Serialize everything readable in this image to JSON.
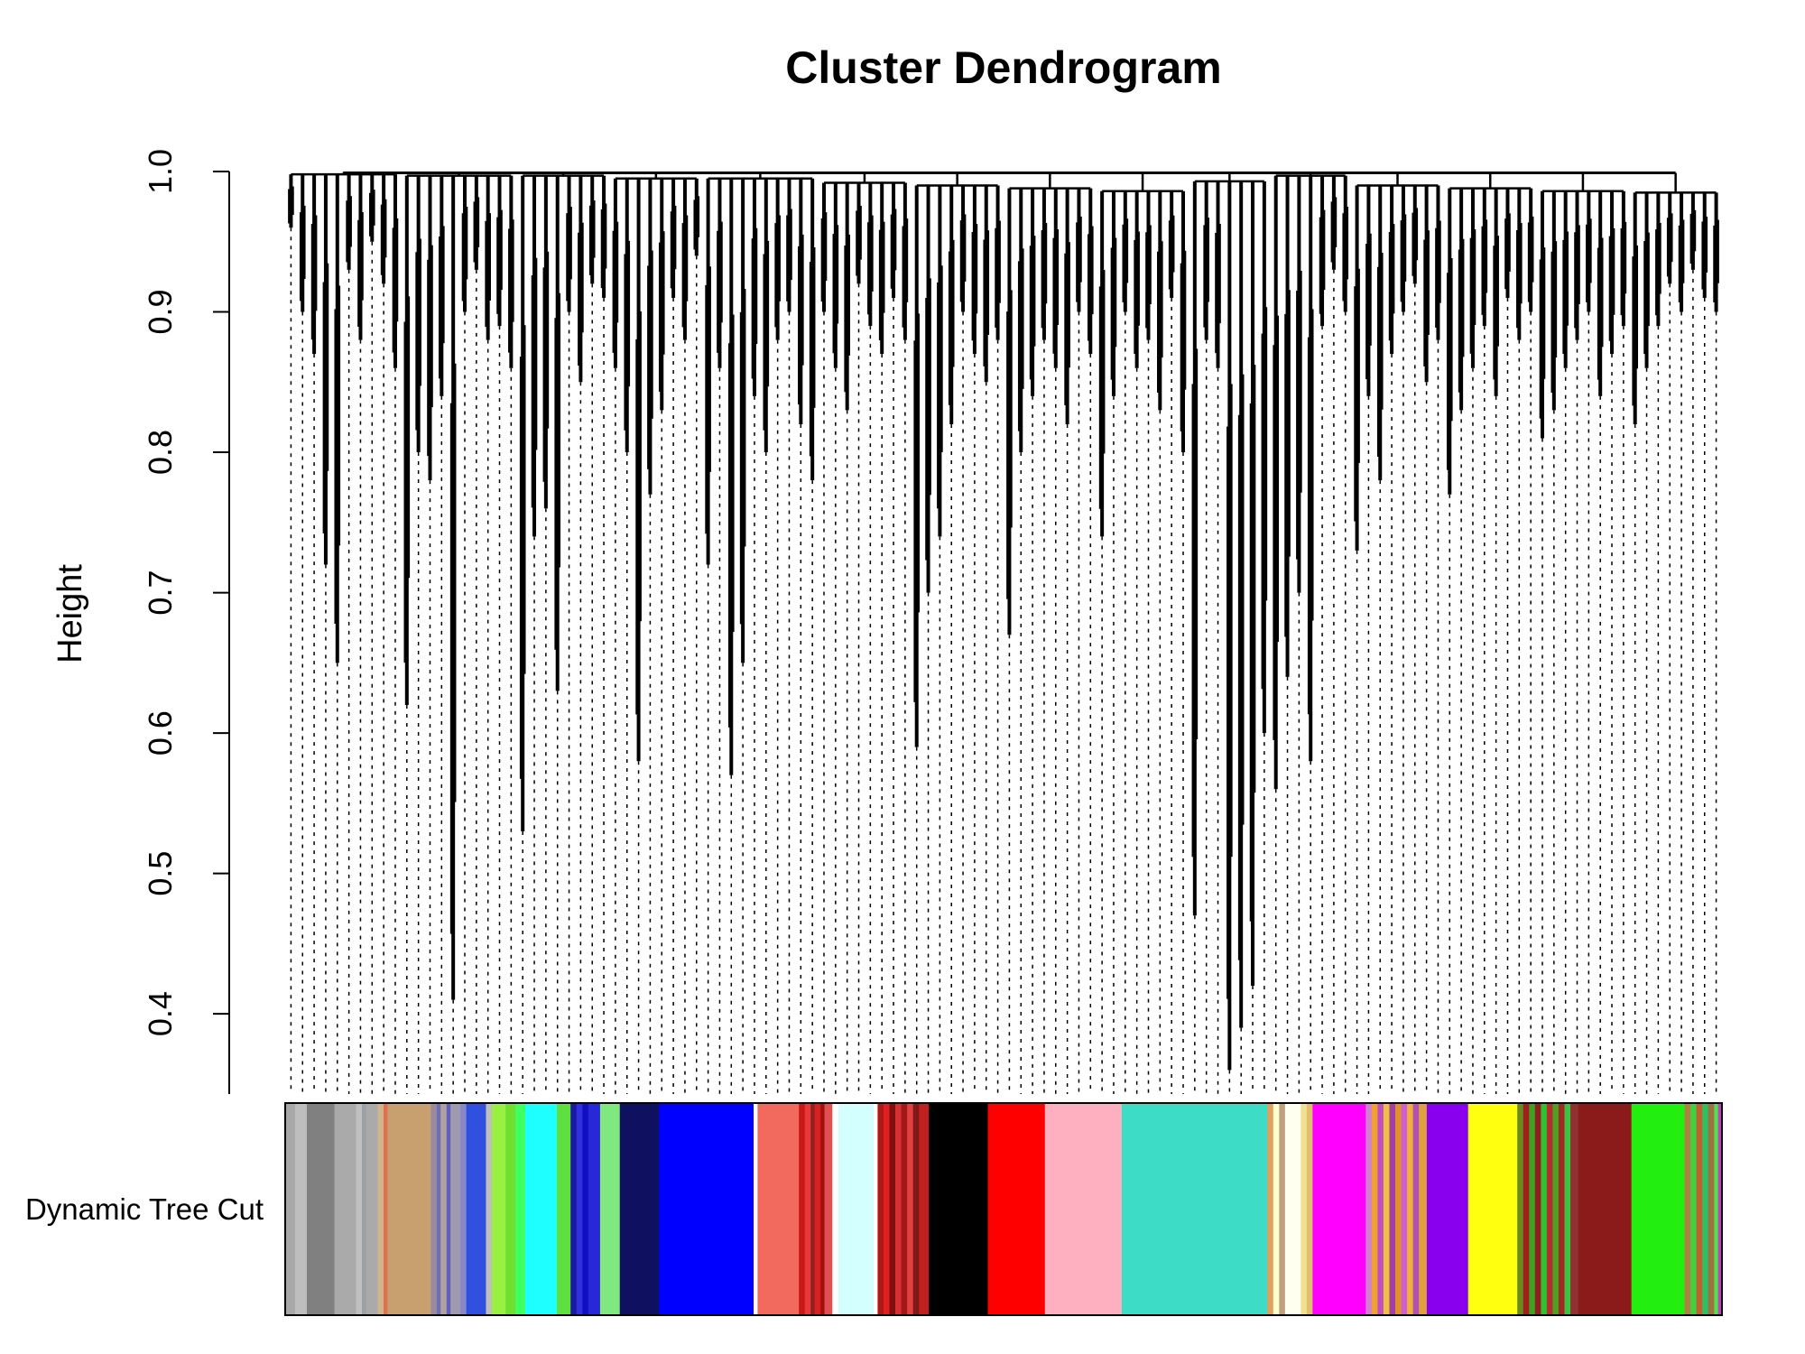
{
  "chart_data": {
    "type": "dendrogram",
    "title": "Cluster Dendrogram",
    "ylabel": "Height",
    "xlabel": "",
    "ylim": [
      0.33,
      1.0
    ],
    "y_ticks": [
      "0.4",
      "0.5",
      "0.6",
      "0.7",
      "0.8",
      "0.9",
      "1.0"
    ],
    "y_tick_values": [
      0.4,
      0.5,
      0.6,
      0.7,
      0.8,
      0.9,
      1.0
    ],
    "color_row_label": "Dynamic Tree Cut",
    "root_height": 0.999,
    "groups": [
      {
        "merge": 0.998,
        "branches": [
          0.96,
          0.9,
          0.87,
          0.72,
          0.65,
          0.93,
          0.88,
          0.95,
          0.92,
          0.86
        ]
      },
      {
        "merge": 0.997,
        "branches": [
          0.62,
          0.8,
          0.78,
          0.84,
          0.41,
          0.9,
          0.93,
          0.88,
          0.89,
          0.86
        ]
      },
      {
        "merge": 0.997,
        "branches": [
          0.53,
          0.74,
          0.76,
          0.63,
          0.9,
          0.85,
          0.92,
          0.91
        ]
      },
      {
        "merge": 0.995,
        "branches": [
          0.86,
          0.8,
          0.58,
          0.77,
          0.83,
          0.91,
          0.88,
          0.94
        ]
      },
      {
        "merge": 0.995,
        "branches": [
          0.72,
          0.86,
          0.57,
          0.65,
          0.84,
          0.8,
          0.88,
          0.9,
          0.82,
          0.78
        ]
      },
      {
        "merge": 0.992,
        "branches": [
          0.9,
          0.86,
          0.83,
          0.92,
          0.89,
          0.87,
          0.91,
          0.88
        ]
      },
      {
        "merge": 0.99,
        "branches": [
          0.59,
          0.7,
          0.74,
          0.82,
          0.9,
          0.87,
          0.85,
          0.88
        ]
      },
      {
        "merge": 0.988,
        "branches": [
          0.67,
          0.8,
          0.84,
          0.88,
          0.86,
          0.82,
          0.9,
          0.87
        ]
      },
      {
        "merge": 0.986,
        "branches": [
          0.74,
          0.84,
          0.9,
          0.86,
          0.88,
          0.83,
          0.91,
          0.8
        ]
      },
      {
        "merge": 0.993,
        "branches": [
          0.47,
          0.88,
          0.86,
          0.36,
          0.39,
          0.42,
          0.6
        ]
      },
      {
        "merge": 0.997,
        "branches": [
          0.56,
          0.64,
          0.7,
          0.58,
          0.89,
          0.93,
          0.9
        ]
      },
      {
        "merge": 0.99,
        "branches": [
          0.73,
          0.84,
          0.78,
          0.87,
          0.9,
          0.92,
          0.85,
          0.88
        ]
      },
      {
        "merge": 0.988,
        "branches": [
          0.77,
          0.83,
          0.86,
          0.89,
          0.84,
          0.91,
          0.88,
          0.9
        ]
      },
      {
        "merge": 0.986,
        "branches": [
          0.81,
          0.83,
          0.86,
          0.88,
          0.9,
          0.84,
          0.87,
          0.89
        ]
      },
      {
        "merge": 0.985,
        "branches": [
          0.82,
          0.86,
          0.89,
          0.92,
          0.9,
          0.93,
          0.91,
          0.9
        ]
      }
    ],
    "color_bands": [
      {
        "w": 10,
        "color": "#a8a8a8"
      },
      {
        "w": 12,
        "color": "#bebebe"
      },
      {
        "w": 28,
        "color": "#808080"
      },
      {
        "w": 22,
        "color": "#aaaaaa"
      },
      {
        "w": 6,
        "color": "#c0c0c0"
      },
      {
        "w": 4,
        "color": "#9aa0a8"
      },
      {
        "w": 12,
        "color": "#aaaaaa"
      },
      {
        "w": 6,
        "color": "#d2b48c"
      },
      {
        "w": 4,
        "color": "#e07050"
      },
      {
        "w": 44,
        "color": "#c8a070"
      },
      {
        "w": 6,
        "color": "#9a8aa0"
      },
      {
        "w": 4,
        "color": "#7070b0"
      },
      {
        "w": 6,
        "color": "#b0a0a0"
      },
      {
        "w": 4,
        "color": "#6060c0"
      },
      {
        "w": 10,
        "color": "#a09ab0"
      },
      {
        "w": 6,
        "color": "#8888c8"
      },
      {
        "w": 20,
        "color": "#3050e0"
      },
      {
        "w": 6,
        "color": "#c0c0c0"
      },
      {
        "w": 14,
        "color": "#98f040"
      },
      {
        "w": 10,
        "color": "#70e030"
      },
      {
        "w": 10,
        "color": "#40ff60"
      },
      {
        "w": 32,
        "color": "#1effff"
      },
      {
        "w": 14,
        "color": "#60e040"
      },
      {
        "w": 6,
        "color": "#1a1aa0"
      },
      {
        "w": 6,
        "color": "#3030e0"
      },
      {
        "w": 6,
        "color": "#1010c0"
      },
      {
        "w": 12,
        "color": "#2828d8"
      },
      {
        "w": 20,
        "color": "#7fe87f"
      },
      {
        "w": 40,
        "color": "#101060"
      },
      {
        "w": 96,
        "color": "#0000ff"
      },
      {
        "w": 4,
        "color": "#ffffff"
      },
      {
        "w": 42,
        "color": "#f26a5e"
      },
      {
        "w": 6,
        "color": "#c81818"
      },
      {
        "w": 6,
        "color": "#e83838"
      },
      {
        "w": 4,
        "color": "#902020"
      },
      {
        "w": 6,
        "color": "#d82020"
      },
      {
        "w": 4,
        "color": "#a01010"
      },
      {
        "w": 8,
        "color": "#e05050"
      },
      {
        "w": 6,
        "color": "#ffffff"
      },
      {
        "w": 36,
        "color": "#d4ffff"
      },
      {
        "w": 4,
        "color": "#ffffff"
      },
      {
        "w": 6,
        "color": "#b01818"
      },
      {
        "w": 6,
        "color": "#e02020"
      },
      {
        "w": 6,
        "color": "#801010"
      },
      {
        "w": 6,
        "color": "#d83030"
      },
      {
        "w": 6,
        "color": "#a01818"
      },
      {
        "w": 6,
        "color": "#e04040"
      },
      {
        "w": 6,
        "color": "#801818"
      },
      {
        "w": 10,
        "color": "#c02020"
      },
      {
        "w": 60,
        "color": "#000000"
      },
      {
        "w": 58,
        "color": "#ff0000"
      },
      {
        "w": 78,
        "color": "#ffb0c0"
      },
      {
        "w": 148,
        "color": "#3cdcc6"
      },
      {
        "w": 6,
        "color": "#e0a060"
      },
      {
        "w": 6,
        "color": "#ffffd0"
      },
      {
        "w": 6,
        "color": "#c0a080"
      },
      {
        "w": 16,
        "color": "#fffff0"
      },
      {
        "w": 6,
        "color": "#f0e090"
      },
      {
        "w": 6,
        "color": "#e0c070"
      },
      {
        "w": 54,
        "color": "#ff00ff"
      },
      {
        "w": 6,
        "color": "#d080d0"
      },
      {
        "w": 6,
        "color": "#f0a030"
      },
      {
        "w": 6,
        "color": "#c050c0"
      },
      {
        "w": 6,
        "color": "#f0c040"
      },
      {
        "w": 6,
        "color": "#a040a0"
      },
      {
        "w": 6,
        "color": "#e09030"
      },
      {
        "w": 6,
        "color": "#d060d0"
      },
      {
        "w": 6,
        "color": "#f0b040"
      },
      {
        "w": 6,
        "color": "#b050b0"
      },
      {
        "w": 8,
        "color": "#e0a040"
      },
      {
        "w": 42,
        "color": "#8800ee"
      },
      {
        "w": 50,
        "color": "#ffff10"
      },
      {
        "w": 6,
        "color": "#6a8a20"
      },
      {
        "w": 6,
        "color": "#a02020"
      },
      {
        "w": 6,
        "color": "#40a020"
      },
      {
        "w": 6,
        "color": "#902020"
      },
      {
        "w": 6,
        "color": "#30c030"
      },
      {
        "w": 6,
        "color": "#b03030"
      },
      {
        "w": 6,
        "color": "#50a020"
      },
      {
        "w": 6,
        "color": "#a02828"
      },
      {
        "w": 6,
        "color": "#40c040"
      },
      {
        "w": 8,
        "color": "#903030"
      },
      {
        "w": 54,
        "color": "#8b1a1a"
      },
      {
        "w": 54,
        "color": "#22ee10"
      },
      {
        "w": 6,
        "color": "#b08040"
      },
      {
        "w": 6,
        "color": "#40d040"
      },
      {
        "w": 6,
        "color": "#c06030"
      },
      {
        "w": 6,
        "color": "#30c060"
      },
      {
        "w": 6,
        "color": "#a07040"
      },
      {
        "w": 4,
        "color": "#50e050"
      },
      {
        "w": 4,
        "color": "#c040c0"
      }
    ]
  }
}
